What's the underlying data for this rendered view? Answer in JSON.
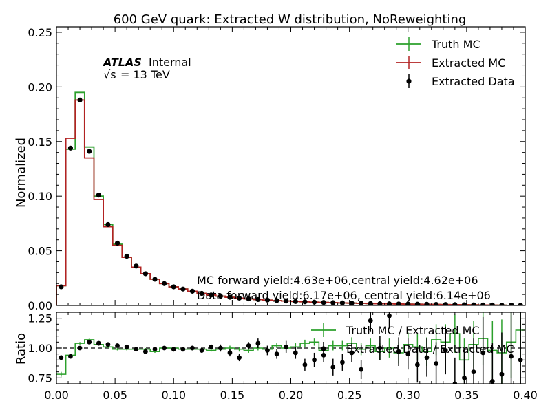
{
  "title": "600 GeV quark: Extracted W distribution, NoReweighting",
  "atlas": {
    "label": "ATLAS",
    "status": "Internal",
    "energy_sqrt": "√s",
    "energy_value": "= 13 TeV"
  },
  "annotations": {
    "mc_yield": "MC forward yield:4.63e+06,central yield:4.62e+06",
    "data_yield": "Data forward yield:6.17e+06, central yield:6.14e+06"
  },
  "colors": {
    "truth": "#2ca02c",
    "extracted": "#b22222",
    "data": "#000000"
  },
  "chart_data": [
    {
      "type": "line",
      "title": "600 GeV quark: Extracted W distribution, NoReweighting",
      "ylabel": "Normalized",
      "xlim": [
        0.0,
        0.4
      ],
      "ylim": [
        0.0,
        0.255
      ],
      "yticks": [
        "0.00",
        "0.05",
        "0.10",
        "0.15",
        "0.20",
        "0.25"
      ],
      "legend_position": "top-right",
      "bin_width": 0.008,
      "series": [
        {
          "name": "Truth MC",
          "style": "step",
          "values": [
            0.018,
            0.143,
            0.195,
            0.145,
            0.1,
            0.074,
            0.056,
            0.044,
            0.035,
            0.029,
            0.024,
            0.02,
            0.017,
            0.015,
            0.013,
            0.011,
            0.0095,
            0.0085,
            0.0075,
            0.0067,
            0.006,
            0.0054,
            0.0049,
            0.0044,
            0.004,
            0.0036,
            0.0033,
            0.003,
            0.0027,
            0.0025,
            0.0023,
            0.0021,
            0.0019,
            0.0017,
            0.0015,
            0.0014,
            0.0013,
            0.0012,
            0.0011,
            0.001,
            0.0009,
            0.0008,
            0.0007,
            0.0006,
            0.0005,
            0.0004,
            0.0003,
            0.0002,
            0.0001,
            0.0001
          ]
        },
        {
          "name": "Extracted MC",
          "style": "step",
          "values": [
            0.018,
            0.153,
            0.188,
            0.135,
            0.097,
            0.072,
            0.055,
            0.044,
            0.035,
            0.029,
            0.024,
            0.02,
            0.017,
            0.015,
            0.013,
            0.011,
            0.0095,
            0.0085,
            0.0075,
            0.0067,
            0.006,
            0.0054,
            0.0049,
            0.0044,
            0.004,
            0.0036,
            0.0033,
            0.003,
            0.0027,
            0.0025,
            0.0023,
            0.0021,
            0.0019,
            0.0017,
            0.0015,
            0.0014,
            0.0013,
            0.0012,
            0.0011,
            0.001,
            0.0009,
            0.0008,
            0.0007,
            0.0006,
            0.0005,
            0.0004,
            0.0003,
            0.0002,
            0.0001,
            0.0001
          ]
        },
        {
          "name": "Extracted Data",
          "style": "points",
          "values": [
            0.017,
            0.144,
            0.188,
            0.141,
            0.101,
            0.074,
            0.057,
            0.045,
            0.036,
            0.029,
            0.024,
            0.02,
            0.017,
            0.015,
            0.013,
            0.011,
            0.0095,
            0.0085,
            0.0075,
            0.0067,
            0.006,
            0.0054,
            0.0049,
            0.0044,
            0.004,
            0.0036,
            0.0033,
            0.003,
            0.0027,
            0.0025,
            0.0023,
            0.0021,
            0.0019,
            0.0017,
            0.0015,
            0.0014,
            0.0013,
            0.0012,
            0.0011,
            0.001,
            0.0009,
            0.0008,
            0.0007,
            0.0006,
            0.0005,
            0.0004,
            0.0003,
            0.0002,
            0.0001,
            0.0001
          ]
        }
      ]
    },
    {
      "type": "line",
      "ylabel": "Ratio",
      "xlim": [
        0.0,
        0.4
      ],
      "ylim": [
        0.7,
        1.3
      ],
      "xticks": [
        "0.00",
        "0.05",
        "0.10",
        "0.15",
        "0.20",
        "0.25",
        "0.30",
        "0.35",
        "0.40"
      ],
      "yticks": [
        "0.75",
        "1.00",
        "1.25"
      ],
      "reference_line": 1.0,
      "legend_position": "top-right",
      "series": [
        {
          "name": "Truth MC / Extracted MC",
          "style": "step",
          "values": [
            0.78,
            0.94,
            1.04,
            1.07,
            1.03,
            1.01,
            0.99,
            0.99,
            0.99,
            0.99,
            0.97,
            1.0,
            1.0,
            0.99,
            0.99,
            0.99,
            0.98,
            0.99,
            1.0,
            0.99,
            0.98,
            1.0,
            0.99,
            1.02,
            1.0,
            1.01,
            1.04,
            1.05,
            0.98,
            1.02,
            1.02,
            1.04,
            0.99,
            1.02,
            0.97,
            1.0,
            0.96,
            1.03,
            1.01,
            0.97,
            1.07,
            1.05,
            1.12,
            0.9,
            1.03,
            1.08,
            0.98,
            0.96,
            1.05,
            1.15
          ],
          "errors": [
            0.02,
            0.01,
            0.01,
            0.01,
            0.01,
            0.01,
            0.01,
            0.01,
            0.01,
            0.01,
            0.01,
            0.01,
            0.01,
            0.01,
            0.01,
            0.01,
            0.01,
            0.01,
            0.02,
            0.02,
            0.02,
            0.02,
            0.02,
            0.02,
            0.03,
            0.03,
            0.03,
            0.03,
            0.04,
            0.04,
            0.04,
            0.05,
            0.05,
            0.06,
            0.07,
            0.08,
            0.09,
            0.1,
            0.11,
            0.12,
            0.13,
            0.15,
            0.16,
            0.18,
            0.2,
            0.22,
            0.25,
            0.28,
            0.3,
            0.3
          ]
        },
        {
          "name": "Extracted Data / Extracted MC",
          "style": "points",
          "values": [
            0.92,
            0.93,
            1.0,
            1.05,
            1.04,
            1.03,
            1.02,
            1.01,
            0.99,
            0.97,
            0.99,
            1.0,
            0.99,
            0.99,
            1.0,
            0.98,
            1.01,
            1.0,
            0.96,
            0.92,
            1.02,
            1.04,
            0.98,
            0.95,
            1.01,
            0.96,
            0.86,
            0.9,
            0.94,
            0.84,
            0.88,
            0.96,
            0.82,
            1.23,
            1.0,
            1.27,
            0.97,
            0.95,
            0.86,
            0.92,
            0.87,
            0.98,
            0.7,
            0.75,
            0.8,
            0.96,
            0.72,
            0.78,
            0.93,
            0.9
          ],
          "errors": [
            0.02,
            0.01,
            0.01,
            0.01,
            0.01,
            0.01,
            0.01,
            0.01,
            0.01,
            0.01,
            0.01,
            0.01,
            0.02,
            0.02,
            0.02,
            0.02,
            0.02,
            0.03,
            0.03,
            0.03,
            0.03,
            0.04,
            0.04,
            0.04,
            0.05,
            0.05,
            0.05,
            0.06,
            0.06,
            0.07,
            0.07,
            0.08,
            0.08,
            0.09,
            0.1,
            0.1,
            0.12,
            0.13,
            0.15,
            0.16,
            0.18,
            0.2,
            0.22,
            0.25,
            0.28,
            0.3,
            0.32,
            0.35,
            0.4,
            0.4
          ]
        }
      ]
    }
  ]
}
